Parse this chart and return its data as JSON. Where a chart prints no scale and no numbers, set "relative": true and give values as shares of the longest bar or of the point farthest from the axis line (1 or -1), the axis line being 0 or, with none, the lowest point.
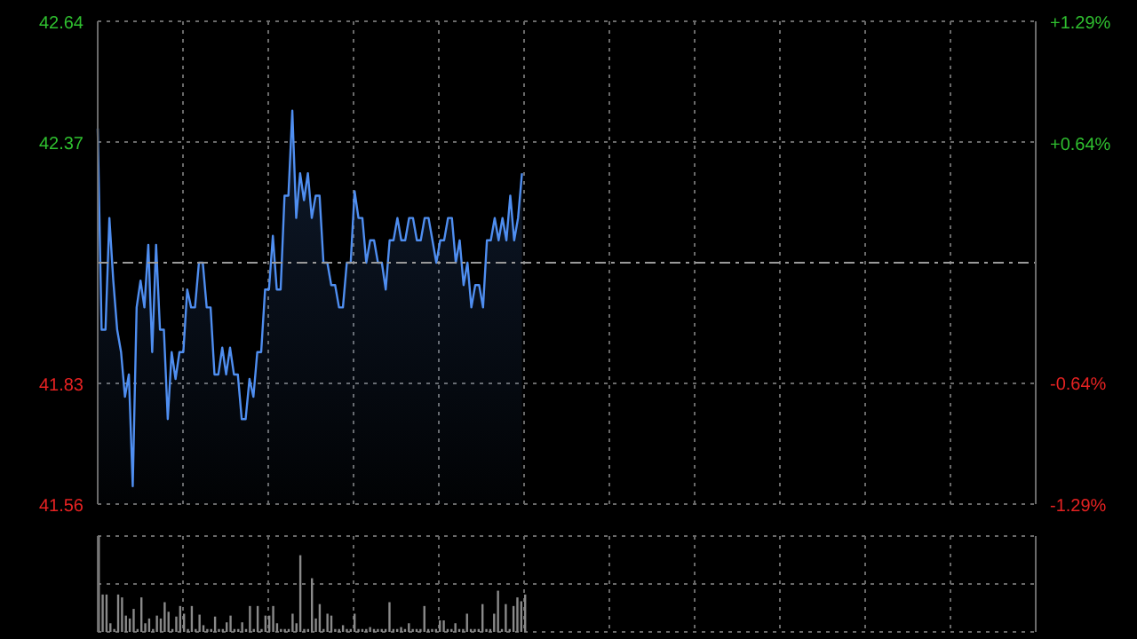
{
  "chart_data": [
    {
      "type": "area",
      "categories": [
        null,
        null,
        null,
        null,
        null,
        null,
        null,
        null,
        null,
        null,
        null,
        null,
        null,
        null,
        null,
        null,
        null,
        null,
        null,
        null,
        null,
        null,
        null,
        null,
        null,
        null,
        null,
        null,
        null,
        null,
        null,
        null,
        null,
        null,
        null,
        null,
        null,
        null,
        null,
        null,
        null,
        null,
        null,
        null,
        null,
        null,
        null,
        null,
        null,
        null,
        null,
        null,
        null,
        null,
        null,
        null,
        null,
        null,
        null,
        null,
        null,
        null,
        null,
        null,
        null,
        null,
        null,
        null,
        null,
        null,
        null,
        null,
        null,
        null,
        null,
        null,
        null,
        null,
        null,
        null,
        null,
        null,
        null,
        null,
        null,
        null,
        null,
        null,
        null,
        null,
        null,
        null,
        null,
        null,
        null,
        null,
        null,
        null,
        null,
        null,
        null,
        null,
        null,
        null,
        null,
        null,
        null,
        null,
        null,
        null,
        null,
        null,
        null,
        null,
        null,
        null,
        null,
        null,
        null,
        null,
        null,
        null,
        null,
        null,
        null,
        null,
        null,
        null,
        null,
        null,
        null,
        null,
        null,
        null,
        null,
        null,
        null,
        null,
        null,
        null,
        null,
        null,
        null,
        null,
        null,
        null,
        null,
        null,
        null,
        null,
        null,
        null,
        null,
        null,
        null,
        null,
        null,
        null,
        null,
        null,
        null,
        null,
        null,
        null,
        null,
        null,
        null,
        null,
        null,
        null,
        null,
        null,
        null,
        null,
        null,
        null,
        null,
        null,
        null,
        null,
        null,
        null,
        null,
        null,
        null,
        null,
        null,
        null,
        null,
        null,
        null,
        null,
        null,
        null,
        null,
        null,
        null,
        null,
        null,
        null,
        null,
        null,
        null,
        null,
        null,
        null,
        null,
        null,
        null,
        null,
        null,
        null,
        null,
        null,
        null,
        null,
        null,
        null,
        null,
        null,
        null,
        null,
        null,
        null,
        null,
        null,
        null,
        null,
        null,
        null,
        null,
        null,
        null,
        null,
        null,
        null,
        null,
        null,
        null,
        null,
        null,
        null
      ],
      "ylim": [
        41.56,
        42.64
      ],
      "yticks": [
        41.56,
        41.83,
        42.37,
        42.64
      ],
      "y2lim": [
        -1.29,
        1.29
      ],
      "y2ticks": [
        {
          "value": -1.29,
          "label": "-1.29%"
        },
        {
          "value": -0.64,
          "label": "-0.64%"
        },
        {
          "value": 0.64,
          "label": "+0.64%"
        },
        {
          "value": 1.29,
          "label": "+1.29%"
        }
      ],
      "grid": true,
      "tick_labels": "y",
      "marker": "none",
      "line_style": "solid",
      "ref_lines": [
        {
          "axis": "y",
          "value": 42.1,
          "color": "#9a9a9a",
          "line_style": "dashed"
        }
      ],
      "series": [
        {
          "color": "#4f8ef0",
          "values": [
            42.4,
            41.95,
            41.95,
            42.2,
            42.06,
            41.95,
            41.9,
            41.8,
            41.85,
            41.6,
            42.0,
            42.06,
            42.0,
            42.14,
            41.9,
            42.14,
            41.95,
            41.95,
            41.75,
            41.9,
            41.84,
            41.9,
            41.9,
            42.04,
            42.0,
            42.0,
            42.1,
            42.1,
            42.0,
            42.0,
            41.85,
            41.85,
            41.91,
            41.85,
            41.91,
            41.85,
            41.85,
            41.75,
            41.75,
            41.84,
            41.8,
            41.9,
            41.9,
            42.04,
            42.04,
            42.16,
            42.04,
            42.04,
            42.25,
            42.25,
            42.44,
            42.2,
            42.3,
            42.24,
            42.3,
            42.2,
            42.25,
            42.25,
            42.1,
            42.1,
            42.05,
            42.05,
            42.0,
            42.0,
            42.1,
            42.1,
            42.26,
            42.2,
            42.2,
            42.1,
            42.15,
            42.15,
            42.1,
            42.1,
            42.04,
            42.15,
            42.15,
            42.2,
            42.15,
            42.15,
            42.2,
            42.2,
            42.15,
            42.15,
            42.2,
            42.2,
            42.15,
            42.1,
            42.15,
            42.15,
            42.2,
            42.2,
            42.1,
            42.15,
            42.05,
            42.1,
            42.0,
            42.05,
            42.05,
            42.0,
            42.15,
            42.15,
            42.2,
            42.15,
            42.2,
            42.15,
            42.25,
            42.15,
            42.2,
            42.3,
            null,
            null,
            null,
            null,
            null,
            null,
            null,
            null,
            null,
            null,
            null,
            null,
            null,
            null,
            null,
            null,
            null,
            null,
            null,
            null,
            null,
            null,
            null,
            null,
            null,
            null,
            null,
            null,
            null,
            null,
            null,
            null,
            null,
            null,
            null,
            null,
            null,
            null,
            null,
            null,
            null,
            null,
            null,
            null,
            null,
            null,
            null,
            null,
            null,
            null,
            null,
            null,
            null,
            null,
            null,
            null,
            null,
            null,
            null,
            null,
            null,
            null,
            null,
            null,
            null,
            null,
            null,
            null,
            null,
            null,
            null,
            null,
            null,
            null,
            null,
            null,
            null,
            null,
            null,
            null,
            null,
            null,
            null,
            null,
            null,
            null,
            null,
            null,
            null,
            null,
            null,
            null,
            null,
            null,
            null,
            null,
            null,
            null,
            null,
            null,
            null,
            null,
            null,
            null,
            null,
            null,
            null,
            null,
            null,
            null,
            null,
            null,
            null,
            null,
            null,
            null,
            null,
            null,
            null,
            null,
            null,
            null,
            null,
            null,
            null,
            null,
            null,
            null,
            null,
            null,
            null,
            null
          ]
        }
      ]
    },
    {
      "type": "bar",
      "relative": true,
      "grid": true,
      "tick_labels": false,
      "categories": [
        null,
        null,
        null,
        null,
        null,
        null,
        null,
        null,
        null,
        null,
        null,
        null,
        null,
        null,
        null,
        null,
        null,
        null,
        null,
        null,
        null,
        null,
        null,
        null,
        null,
        null,
        null,
        null,
        null,
        null,
        null,
        null,
        null,
        null,
        null,
        null,
        null,
        null,
        null,
        null,
        null,
        null,
        null,
        null,
        null,
        null,
        null,
        null,
        null,
        null,
        null,
        null,
        null,
        null,
        null,
        null,
        null,
        null,
        null,
        null,
        null,
        null,
        null,
        null,
        null,
        null,
        null,
        null,
        null,
        null,
        null,
        null,
        null,
        null,
        null,
        null,
        null,
        null,
        null,
        null,
        null,
        null,
        null,
        null,
        null,
        null,
        null,
        null,
        null,
        null,
        null,
        null,
        null,
        null,
        null,
        null,
        null,
        null,
        null,
        null,
        null,
        null,
        null,
        null,
        null,
        null,
        null,
        null,
        null,
        null,
        null,
        null,
        null,
        null,
        null,
        null,
        null,
        null,
        null,
        null,
        null,
        null,
        null,
        null,
        null,
        null,
        null,
        null,
        null,
        null,
        null,
        null,
        null,
        null,
        null,
        null,
        null,
        null,
        null,
        null,
        null,
        null,
        null,
        null,
        null,
        null,
        null,
        null,
        null,
        null,
        null,
        null,
        null,
        null,
        null,
        null,
        null,
        null,
        null,
        null,
        null,
        null,
        null,
        null,
        null,
        null,
        null,
        null,
        null,
        null,
        null,
        null,
        null,
        null,
        null,
        null,
        null,
        null,
        null,
        null,
        null,
        null,
        null,
        null,
        null,
        null,
        null,
        null,
        null,
        null,
        null,
        null,
        null,
        null,
        null,
        null,
        null,
        null,
        null,
        null,
        null,
        null,
        null,
        null,
        null,
        null,
        null,
        null,
        null,
        null,
        null,
        null,
        null,
        null,
        null,
        null,
        null,
        null,
        null,
        null,
        null,
        null,
        null,
        null,
        null,
        null,
        null,
        null,
        null,
        null,
        null,
        null,
        null,
        null,
        null,
        null,
        null,
        null,
        null,
        null,
        null,
        null
      ],
      "series": [
        {
          "color": "#8a8a8a",
          "values": [
            1,
            0.39,
            0.39,
            0.09,
            0.03,
            0.39,
            0.36,
            0.17,
            0.14,
            0.24,
            0.03,
            0.36,
            0.09,
            0.14,
            0.03,
            0.17,
            0.14,
            0.31,
            0.21,
            0.03,
            0.16,
            0.27,
            0.19,
            0.03,
            0.27,
            0.03,
            0.18,
            0.07,
            0.03,
            0.03,
            0.16,
            0.03,
            0.03,
            0.1,
            0.17,
            0.03,
            0.03,
            0.1,
            0.03,
            0.27,
            0.03,
            0.27,
            0.03,
            0.17,
            0.17,
            0.27,
            0.09,
            0.03,
            0.03,
            0.03,
            0.19,
            0.09,
            0.8,
            0.03,
            0.03,
            0.56,
            0.14,
            0.29,
            0.03,
            0.19,
            0.17,
            0.03,
            0.03,
            0.07,
            0.03,
            0.03,
            0.19,
            0.03,
            0.03,
            0.03,
            0.05,
            0.03,
            0.03,
            0.03,
            0.03,
            0.31,
            0.03,
            0.03,
            0.05,
            0.03,
            0.09,
            0.03,
            0.03,
            0.03,
            0.27,
            0.03,
            0.03,
            0.03,
            0.12,
            0.12,
            0.03,
            0.03,
            0.09,
            0.03,
            0.03,
            0.19,
            0.03,
            0.03,
            0.03,
            0.29,
            0.03,
            0.03,
            0.19,
            0.43,
            0.03,
            0.29,
            0.03,
            0.27,
            0.36,
            0.32,
            0.39,
            null,
            null,
            null,
            null,
            null,
            null,
            null,
            null,
            null,
            null,
            null,
            null,
            null,
            null,
            null,
            null,
            null,
            null,
            null,
            null,
            null,
            null,
            null,
            null,
            null,
            null,
            null,
            null,
            null,
            null,
            null,
            null,
            null,
            null,
            null,
            null,
            null,
            null,
            null,
            null,
            null,
            null,
            null,
            null,
            null,
            null,
            null,
            null,
            null,
            null,
            null,
            null,
            null,
            null,
            null,
            null,
            null,
            null,
            null,
            null,
            null,
            null,
            null,
            null,
            null,
            null,
            null,
            null,
            null,
            null,
            null,
            null,
            null,
            null,
            null,
            null,
            null,
            null,
            null,
            null,
            null,
            null,
            null,
            null,
            null,
            null,
            null,
            null,
            null,
            null,
            null,
            null,
            null,
            null,
            null,
            null,
            null,
            null,
            null,
            null,
            null,
            null,
            null,
            null,
            null,
            null,
            null,
            null,
            null,
            null,
            null,
            null,
            null,
            null,
            null,
            null,
            null,
            null,
            null,
            null,
            null,
            null,
            null,
            null,
            null,
            null,
            null,
            null,
            null,
            null,
            null
          ]
        }
      ]
    }
  ]
}
